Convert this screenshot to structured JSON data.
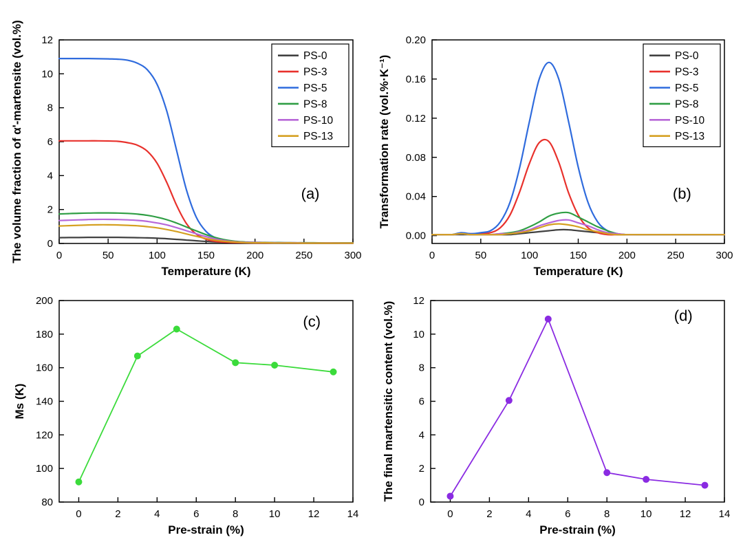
{
  "figure": {
    "background": "#ffffff"
  },
  "chart_data": [
    {
      "id": "a",
      "type": "line",
      "panel_label": "(a)",
      "xlabel": "Temperature (K)",
      "ylabel": "The volume fraction of α'-martensite (vol.%)",
      "xlim": [
        0,
        300
      ],
      "ylim": [
        0,
        12
      ],
      "xticks": [
        0,
        50,
        100,
        150,
        200,
        250,
        300
      ],
      "yticks": [
        0,
        2,
        4,
        6,
        8,
        10,
        12
      ],
      "ytick_decimals": 0,
      "grid": false,
      "legend": {
        "position": "top-right"
      },
      "x": [
        0,
        10,
        20,
        30,
        40,
        50,
        60,
        70,
        80,
        90,
        100,
        110,
        120,
        130,
        140,
        150,
        160,
        170,
        180,
        190,
        200,
        210,
        220,
        230,
        240,
        250,
        260,
        270,
        280,
        290,
        300
      ],
      "series": [
        {
          "name": "PS-0",
          "color": "#404040",
          "values": [
            0.34,
            0.35,
            0.35,
            0.36,
            0.36,
            0.36,
            0.36,
            0.35,
            0.34,
            0.33,
            0.31,
            0.28,
            0.24,
            0.2,
            0.16,
            0.12,
            0.09,
            0.07,
            0.05,
            0.04,
            0.03,
            0.03,
            0.03,
            0.02,
            0.02,
            0.02,
            0.02,
            0.02,
            0.02,
            0.02,
            0.02
          ]
        },
        {
          "name": "PS-3",
          "color": "#e8312c",
          "values": [
            6.05,
            6.05,
            6.05,
            6.05,
            6.05,
            6.04,
            6.02,
            5.94,
            5.79,
            5.44,
            4.73,
            3.58,
            2.24,
            1.17,
            0.55,
            0.25,
            0.12,
            0.07,
            0.05,
            0.04,
            0.03,
            0.03,
            0.03,
            0.03,
            0.02,
            0.02,
            0.02,
            0.02,
            0.02,
            0.02,
            0.02
          ]
        },
        {
          "name": "PS-5",
          "color": "#2f6bdd",
          "values": [
            10.9,
            10.9,
            10.9,
            10.9,
            10.89,
            10.88,
            10.86,
            10.8,
            10.62,
            10.24,
            9.38,
            7.78,
            5.47,
            3.16,
            1.55,
            0.71,
            0.32,
            0.15,
            0.09,
            0.06,
            0.05,
            0.05,
            0.05,
            0.04,
            0.04,
            0.04,
            0.03,
            0.03,
            0.03,
            0.03,
            0.03
          ]
        },
        {
          "name": "PS-8",
          "color": "#2f9e44",
          "values": [
            1.74,
            1.76,
            1.78,
            1.79,
            1.8,
            1.8,
            1.79,
            1.77,
            1.73,
            1.66,
            1.55,
            1.4,
            1.2,
            0.97,
            0.74,
            0.52,
            0.34,
            0.21,
            0.13,
            0.09,
            0.07,
            0.06,
            0.05,
            0.05,
            0.04,
            0.04,
            0.04,
            0.03,
            0.03,
            0.03,
            0.03
          ]
        },
        {
          "name": "PS-10",
          "color": "#b767d8",
          "values": [
            1.35,
            1.37,
            1.39,
            1.41,
            1.42,
            1.42,
            1.41,
            1.39,
            1.36,
            1.3,
            1.21,
            1.09,
            0.93,
            0.75,
            0.57,
            0.4,
            0.26,
            0.16,
            0.1,
            0.07,
            0.06,
            0.05,
            0.04,
            0.04,
            0.04,
            0.03,
            0.03,
            0.03,
            0.03,
            0.02,
            0.02
          ]
        },
        {
          "name": "PS-13",
          "color": "#d5a021",
          "values": [
            1.03,
            1.05,
            1.07,
            1.09,
            1.1,
            1.1,
            1.09,
            1.07,
            1.04,
            0.99,
            0.92,
            0.82,
            0.7,
            0.56,
            0.42,
            0.29,
            0.19,
            0.12,
            0.08,
            0.05,
            0.04,
            0.04,
            0.03,
            0.03,
            0.03,
            0.02,
            0.02,
            0.02,
            0.02,
            0.02,
            0.02
          ]
        }
      ]
    },
    {
      "id": "b",
      "type": "line",
      "panel_label": "(b)",
      "xlabel": "Temperature (K)",
      "ylabel": "Transformation rate (vol.%·K⁻¹)",
      "xlim": [
        0,
        300
      ],
      "ylim": [
        -0.008,
        0.2
      ],
      "xticks": [
        0,
        50,
        100,
        150,
        200,
        250,
        300
      ],
      "yticks": [
        0.0,
        0.04,
        0.08,
        0.12,
        0.16,
        0.2
      ],
      "ytick_decimals": 2,
      "grid": false,
      "legend": {
        "position": "top-right"
      },
      "x": [
        0,
        10,
        20,
        30,
        40,
        50,
        60,
        70,
        80,
        90,
        100,
        110,
        120,
        130,
        140,
        150,
        160,
        170,
        180,
        190,
        200,
        210,
        220,
        230,
        240,
        250,
        260,
        270,
        280,
        290,
        300
      ],
      "series": [
        {
          "name": "PS-0",
          "color": "#404040",
          "values": [
            0.001,
            0.001,
            0.001,
            0.001,
            0.001,
            0.001,
            0.001,
            0.001,
            0.001,
            0.002,
            0.003,
            0.004,
            0.005,
            0.006,
            0.006,
            0.005,
            0.004,
            0.003,
            0.002,
            0.001,
            0.001,
            0.001,
            0.001,
            0.001,
            0.001,
            0.001,
            0.001,
            0.001,
            0.001,
            0.001,
            0.001
          ]
        },
        {
          "name": "PS-3",
          "color": "#e8312c",
          "values": [
            0.001,
            0.001,
            0.001,
            0.002,
            0.002,
            0.002,
            0.003,
            0.008,
            0.021,
            0.045,
            0.074,
            0.095,
            0.096,
            0.075,
            0.044,
            0.021,
            0.008,
            0.003,
            0.001,
            0.001,
            0.001,
            0.001,
            0.001,
            0.001,
            0.001,
            0.001,
            0.001,
            0.001,
            0.001,
            0.001,
            0.001
          ]
        },
        {
          "name": "PS-5",
          "color": "#2f6bdd",
          "values": [
            0.001,
            0.001,
            0.001,
            0.003,
            0.002,
            0.003,
            0.005,
            0.014,
            0.034,
            0.07,
            0.117,
            0.16,
            0.177,
            0.16,
            0.117,
            0.07,
            0.034,
            0.014,
            0.005,
            0.002,
            0.001,
            0.001,
            0.001,
            0.001,
            0.001,
            0.001,
            0.001,
            0.001,
            0.001,
            0.001,
            0.001
          ]
        },
        {
          "name": "PS-8",
          "color": "#2f9e44",
          "values": [
            0.001,
            0.001,
            0.001,
            0.002,
            0.001,
            0.001,
            0.001,
            0.002,
            0.003,
            0.005,
            0.009,
            0.014,
            0.02,
            0.023,
            0.0235,
            0.019,
            0.014,
            0.009,
            0.005,
            0.002,
            0.001,
            0.001,
            0.001,
            0.001,
            0.001,
            0.001,
            0.001,
            0.001,
            0.001,
            0.001,
            0.001
          ]
        },
        {
          "name": "PS-10",
          "color": "#b767d8",
          "values": [
            0.001,
            0.001,
            0.001,
            0.002,
            0.001,
            0.001,
            0.001,
            0.002,
            0.002,
            0.004,
            0.006,
            0.01,
            0.013,
            0.0155,
            0.016,
            0.013,
            0.01,
            0.006,
            0.003,
            0.002,
            0.001,
            0.001,
            0.001,
            0.001,
            0.001,
            0.001,
            0.001,
            0.001,
            0.001,
            0.001,
            0.001
          ]
        },
        {
          "name": "PS-13",
          "color": "#d5a021",
          "values": [
            0.001,
            0.001,
            0.001,
            0.002,
            0.001,
            0.001,
            0.001,
            0.001,
            0.002,
            0.003,
            0.005,
            0.008,
            0.011,
            0.012,
            0.011,
            0.009,
            0.006,
            0.004,
            0.002,
            0.001,
            0.001,
            0.001,
            0.001,
            0.001,
            0.001,
            0.001,
            0.001,
            0.001,
            0.001,
            0.001,
            0.001
          ]
        }
      ]
    },
    {
      "id": "c",
      "type": "line-scatter",
      "panel_label": "(c)",
      "xlabel": "Pre-strain (%)",
      "ylabel": "Ms (K)",
      "xlim": [
        -1,
        14
      ],
      "ylim": [
        80,
        200
      ],
      "xticks": [
        0,
        2,
        4,
        6,
        8,
        10,
        12,
        14
      ],
      "yticks": [
        80,
        100,
        120,
        140,
        160,
        180,
        200
      ],
      "ytick_decimals": 0,
      "grid": false,
      "series": [
        {
          "name": "Ms",
          "color": "#3bdb3b",
          "marker": true,
          "x": [
            0,
            3,
            5,
            8,
            10,
            13
          ],
          "values": [
            92,
            167,
            183,
            163,
            161.5,
            157.5
          ]
        }
      ]
    },
    {
      "id": "d",
      "type": "line-scatter",
      "panel_label": "(d)",
      "xlabel": "Pre-strain (%)",
      "ylabel": "The final martensitic content (vol.%)",
      "xlim": [
        -1,
        14
      ],
      "ylim": [
        0,
        12
      ],
      "xticks": [
        0,
        2,
        4,
        6,
        8,
        10,
        12,
        14
      ],
      "yticks": [
        0,
        2,
        4,
        6,
        8,
        10,
        12
      ],
      "ytick_decimals": 0,
      "grid": false,
      "series": [
        {
          "name": "final martensitic content",
          "color": "#8a2be2",
          "marker": true,
          "x": [
            0,
            3,
            5,
            8,
            10,
            13
          ],
          "values": [
            0.35,
            6.05,
            10.9,
            1.75,
            1.35,
            1.0
          ]
        }
      ]
    }
  ]
}
